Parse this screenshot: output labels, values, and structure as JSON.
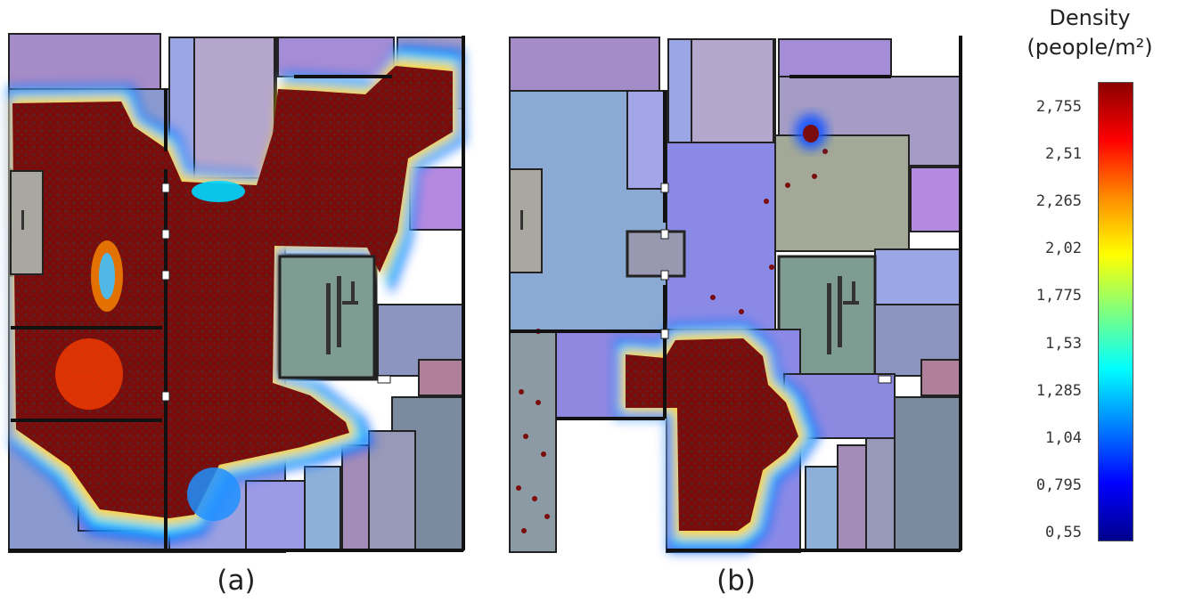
{
  "panels": [
    {
      "caption": "(a)"
    },
    {
      "caption": "(b)"
    }
  ],
  "legend": {
    "title_line1": "Density",
    "title_line2": "(people/m²)",
    "ticks": [
      "2,755",
      "2,51",
      "2,265",
      "2,02",
      "1,775",
      "1,53",
      "1,285",
      "1,04",
      "0,795",
      "0,55"
    ],
    "colormap": [
      "#8b0000",
      "#ff0000",
      "#ff8c00",
      "#ffff00",
      "#7fff7f",
      "#00ffff",
      "#0080ff",
      "#0000ff",
      "#00008b"
    ]
  },
  "colors": {
    "room_purple": "#9b86c4",
    "room_blue": "#9aa2e8",
    "room_grey": "#9898b4",
    "room_green": "#7f9c92",
    "corridor_blue": "#8aa8d0",
    "crowd": "#7a0c0c"
  }
}
